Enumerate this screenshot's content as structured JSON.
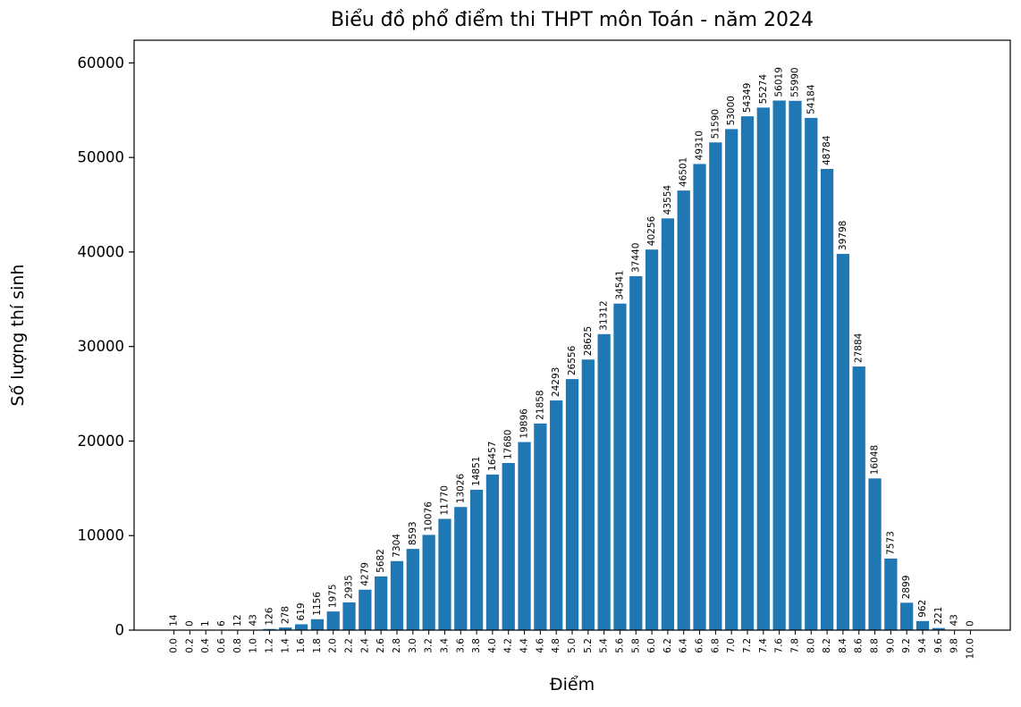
{
  "chart_data": {
    "type": "bar",
    "title": "Biểu đồ phổ điểm thi THPT môn Toán - năm 2024",
    "xlabel": "Điểm",
    "ylabel": "Số lượng thí sinh",
    "categories": [
      "0.0",
      "0.2",
      "0.4",
      "0.6",
      "0.8",
      "1.0",
      "1.2",
      "1.4",
      "1.6",
      "1.8",
      "2.0",
      "2.2",
      "2.4",
      "2.6",
      "2.8",
      "3.0",
      "3.2",
      "3.4",
      "3.6",
      "3.8",
      "4.0",
      "4.2",
      "4.4",
      "4.6",
      "4.8",
      "5.0",
      "5.2",
      "5.4",
      "5.6",
      "5.8",
      "6.0",
      "6.2",
      "6.4",
      "6.6",
      "6.8",
      "7.0",
      "7.2",
      "7.4",
      "7.6",
      "7.8",
      "8.0",
      "8.2",
      "8.4",
      "8.6",
      "8.8",
      "9.0",
      "9.2",
      "9.4",
      "9.6",
      "9.8",
      "10.0"
    ],
    "values": [
      14,
      0,
      1,
      6,
      12,
      43,
      126,
      278,
      619,
      1156,
      1975,
      2935,
      4279,
      5682,
      7304,
      8593,
      10076,
      11770,
      13026,
      14851,
      16457,
      17680,
      19896,
      21858,
      24293,
      26556,
      28625,
      31312,
      34541,
      37440,
      40256,
      43554,
      46501,
      49310,
      51590,
      53000,
      54349,
      55274,
      56019,
      55990,
      54184,
      48784,
      39798,
      27884,
      16048,
      7573,
      2899,
      962,
      221,
      43,
      0
    ],
    "yticks": [
      0,
      10000,
      20000,
      30000,
      40000,
      50000,
      60000
    ],
    "ylim": [
      0,
      62400
    ],
    "bar_color": "#1f77b4",
    "axis_color": "#000000",
    "grid": false,
    "legend": "none",
    "bar_labels": true,
    "x_tick_rotation": 90,
    "bar_label_rotation": 90
  }
}
